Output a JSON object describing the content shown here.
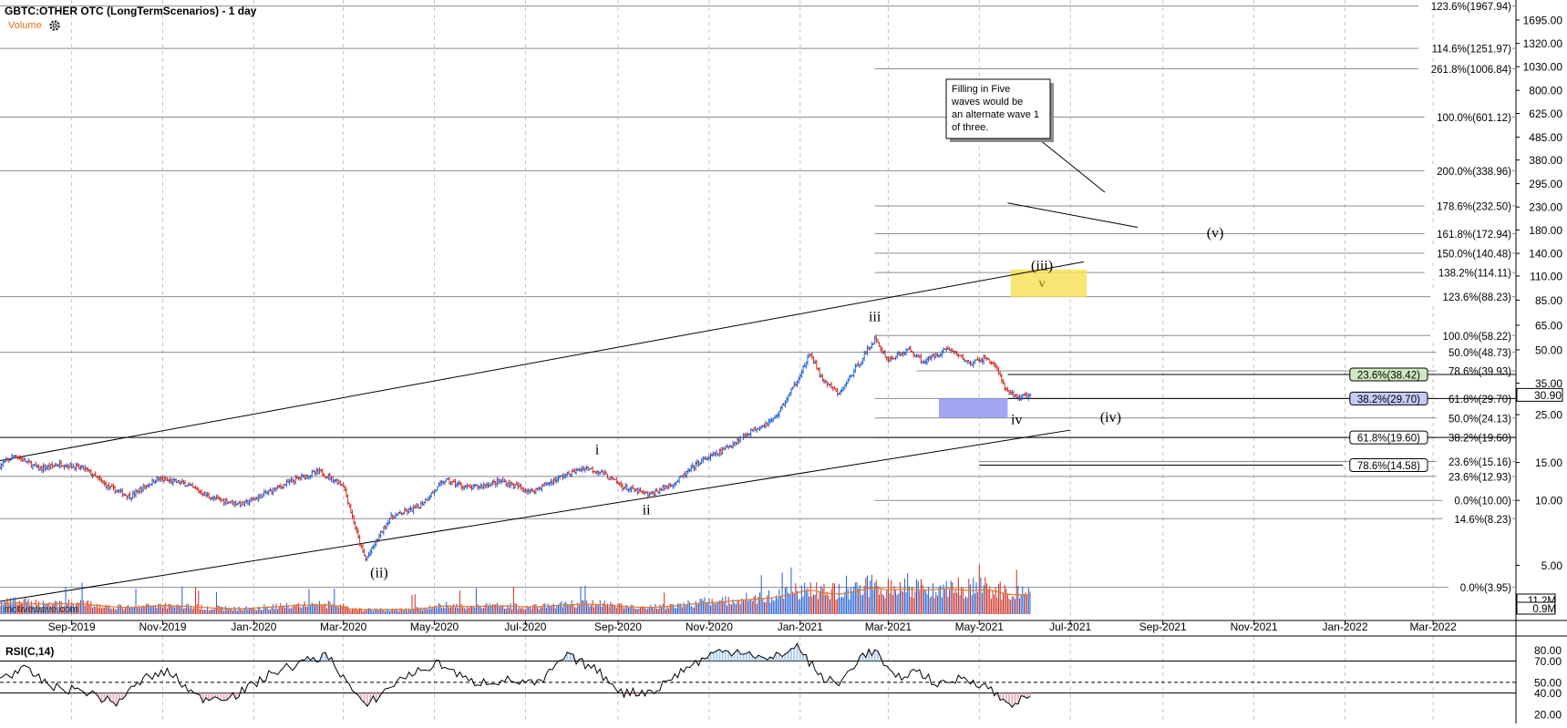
{
  "header": {
    "title": "GBTC:OTHER OTC (LongTermScenarios) - 1 day",
    "volume_label": "Volume",
    "settings_icon": "gear-icon"
  },
  "watermark": "motivewave.com",
  "chart_data": [
    {
      "type": "candlestick",
      "name": "price",
      "y_scale": "log",
      "ylim": [
        2.8,
        2100
      ],
      "x_range": [
        "2019-07-15",
        "2022-04-20"
      ],
      "x_ticks": [
        "Sep-2019",
        "Nov-2019",
        "Jan-2020",
        "Mar-2020",
        "May-2020",
        "Jul-2020",
        "Sep-2020",
        "Nov-2020",
        "Jan-2021",
        "Mar-2021",
        "May-2021",
        "Jul-2021",
        "Sep-2021",
        "Nov-2021",
        "Jan-2022",
        "Mar-2022"
      ],
      "y_ticks": [
        1695.0,
        1320.0,
        1030.0,
        800.0,
        625.0,
        485.0,
        380.0,
        295.0,
        230.0,
        180.0,
        140.0,
        110.0,
        85.0,
        65.0,
        50.0,
        35.0,
        25.0,
        15.0,
        10.0,
        5.0
      ],
      "last_price": "30.90",
      "price_points": [
        [
          "2019-07-15",
          14.5
        ],
        [
          "2019-07-25",
          16.2
        ],
        [
          "2019-08-10",
          14.0
        ],
        [
          "2019-08-25",
          14.8
        ],
        [
          "2019-09-10",
          14.0
        ],
        [
          "2019-09-25",
          11.6
        ],
        [
          "2019-10-10",
          10.4
        ],
        [
          "2019-10-28",
          12.6
        ],
        [
          "2019-11-15",
          12.0
        ],
        [
          "2019-12-05",
          10.2
        ],
        [
          "2019-12-25",
          9.6
        ],
        [
          "2020-01-15",
          11.3
        ],
        [
          "2020-02-01",
          12.8
        ],
        [
          "2020-02-14",
          13.6
        ],
        [
          "2020-03-01",
          11.8
        ],
        [
          "2020-03-12",
          6.3
        ],
        [
          "2020-03-16",
          5.3
        ],
        [
          "2020-04-01",
          8.3
        ],
        [
          "2020-04-20",
          9.3
        ],
        [
          "2020-05-08",
          12.4
        ],
        [
          "2020-05-25",
          11.4
        ],
        [
          "2020-06-15",
          12.3
        ],
        [
          "2020-07-05",
          11.0
        ],
        [
          "2020-07-25",
          12.9
        ],
        [
          "2020-08-10",
          14.2
        ],
        [
          "2020-08-20",
          13.6
        ],
        [
          "2020-09-05",
          11.5
        ],
        [
          "2020-09-22",
          10.6
        ],
        [
          "2020-10-10",
          12.2
        ],
        [
          "2020-10-25",
          15.0
        ],
        [
          "2020-11-10",
          17.0
        ],
        [
          "2020-11-28",
          20.8
        ],
        [
          "2020-12-15",
          24.0
        ],
        [
          "2020-12-28",
          34.0
        ],
        [
          "2021-01-08",
          48.0
        ],
        [
          "2021-01-15",
          37.0
        ],
        [
          "2021-01-27",
          31.0
        ],
        [
          "2021-02-10",
          44.0
        ],
        [
          "2021-02-20",
          56.0
        ],
        [
          "2021-03-01",
          45.0
        ],
        [
          "2021-03-15",
          50.0
        ],
        [
          "2021-03-25",
          44.0
        ],
        [
          "2021-04-10",
          51.0
        ],
        [
          "2021-04-25",
          43.0
        ],
        [
          "2021-05-05",
          46.0
        ],
        [
          "2021-05-12",
          42.0
        ],
        [
          "2021-05-19",
          32.0
        ],
        [
          "2021-05-28",
          30.0
        ],
        [
          "2021-06-04",
          30.9
        ]
      ],
      "lines": [
        {
          "from": [
            "2019-07-15",
            15.3
          ],
          "to": [
            "2021-07-10",
            128.0
          ]
        },
        {
          "from": [
            "2019-07-15",
            3.4
          ],
          "to": [
            "2021-07-01",
            21.2
          ]
        },
        {
          "from": [
            "2021-05-20",
            240.0
          ],
          "to": [
            "2021-08-15",
            185.0
          ]
        }
      ],
      "wave_labels": [
        {
          "text": "i",
          "x": "2020-08-18",
          "y": 16.4
        },
        {
          "text": "ii",
          "x": "2020-09-20",
          "y": 8.6
        },
        {
          "text": "(ii)",
          "x": "2020-03-25",
          "y": 4.4
        },
        {
          "text": "iii",
          "x": "2021-02-20",
          "y": 68.0
        },
        {
          "text": "(iii)",
          "x": "2021-06-12",
          "y": 117.0
        },
        {
          "text": "v",
          "x": "2021-06-12",
          "y": 98.0
        },
        {
          "text": "iv",
          "x": "2021-05-26",
          "y": 22.6
        },
        {
          "text": "(iv)",
          "x": "2021-07-28",
          "y": 23.2
        },
        {
          "text": "(v)",
          "x": "2021-10-06",
          "y": 166.0
        }
      ],
      "highlight_boxes": [
        {
          "x0": "2021-05-22",
          "x1": "2021-07-12",
          "y0": 88.0,
          "y1": 118.0,
          "color": "#f8e25a"
        },
        {
          "x0": "2021-04-04",
          "x1": "2021-05-20",
          "y0": 24.2,
          "y1": 29.7,
          "color": "#8f97f2"
        }
      ],
      "annotation": "Filling in Five waves would be an alternate wave 1 of three.",
      "annotation_anchor": [
        "2021-07-12",
        520.0
      ],
      "fib_levels": [
        {
          "label": "123.6%(1967.94)",
          "value": 1967.94,
          "x_start": "2019-07-15"
        },
        {
          "label": "114.6%(1251.97)",
          "value": 1251.97,
          "x_start": "2019-07-15"
        },
        {
          "label": "261.8%(1006.84)",
          "value": 1006.84,
          "x_start": "2021-02-20"
        },
        {
          "label": "100.0%(601.12)",
          "value": 601.12,
          "x_start": "2019-07-15"
        },
        {
          "label": "200.0%(338.96)",
          "value": 338.96,
          "x_start": "2019-07-15"
        },
        {
          "label": "178.6%(232.50)",
          "value": 232.5,
          "x_start": "2021-02-20"
        },
        {
          "label": "161.8%(172.94)",
          "value": 172.94,
          "x_start": "2021-02-20"
        },
        {
          "label": "150.0%(140.48)",
          "value": 140.48,
          "x_start": "2021-02-20"
        },
        {
          "label": "138.2%(114.11)",
          "value": 114.11,
          "x_start": "2021-02-20"
        },
        {
          "label": "123.6%(88.23)",
          "value": 88.23,
          "x_start": "2019-07-15"
        },
        {
          "label": "100.0%(58.22)",
          "value": 58.22,
          "x_start": "2021-02-20"
        },
        {
          "label": "50.0%(48.73)",
          "value": 48.73,
          "x_start": "2019-07-15"
        },
        {
          "label": "78.6%(39.93)",
          "value": 39.93,
          "x_start": "2021-03-20"
        },
        {
          "label": "61.8%(29.70)",
          "value": 29.7,
          "x_start": "2021-02-20"
        },
        {
          "label": "50.0%(24.13)",
          "value": 24.13,
          "x_start": "2021-02-20"
        },
        {
          "label": "38.2%(19.60)",
          "value": 19.6,
          "x_start": "2021-02-20"
        },
        {
          "label": "23.6%(15.16)",
          "value": 15.16,
          "x_start": "2021-05-01"
        },
        {
          "label": "23.6%(12.93)",
          "value": 12.93,
          "x_start": "2019-07-15"
        },
        {
          "label": "0.0%(10.00)",
          "value": 10.0,
          "x_start": "2021-02-20"
        },
        {
          "label": "14.6%(8.23)",
          "value": 8.23,
          "x_start": "2019-07-15"
        },
        {
          "label": "0.0%(3.95)",
          "value": 3.95,
          "x_start": "2019-07-15"
        }
      ],
      "boxed_levels": [
        {
          "label": "23.6%(38.42)",
          "value": 38.42,
          "fill": "#cdeac0",
          "x_start": "2021-05-20"
        },
        {
          "label": "38.2%(29.70)",
          "value": 29.7,
          "fill": "#c5ccf6",
          "x_start": "2021-05-20"
        },
        {
          "label": "61.8%(19.60)",
          "value": 19.6,
          "fill": "#ffffff",
          "x_start": "2019-07-15"
        },
        {
          "label": "78.6%(14.58)",
          "value": 14.58,
          "fill": "#ffffff",
          "x_start": null
        }
      ]
    },
    {
      "type": "bar",
      "name": "volume",
      "labels": [
        "11.2M",
        "0.9M"
      ]
    },
    {
      "type": "line",
      "name": "rsi",
      "title": "RSI(C,14)",
      "ylim": [
        15,
        90
      ],
      "levels": [
        70,
        50,
        40
      ],
      "y_ticks": [
        80.0,
        70.0,
        50.0,
        40.0,
        20.0
      ],
      "points": [
        [
          "2019-07-15",
          55
        ],
        [
          "2019-08-01",
          62
        ],
        [
          "2019-08-20",
          45
        ],
        [
          "2019-09-10",
          42
        ],
        [
          "2019-09-30",
          30
        ],
        [
          "2019-10-20",
          54
        ],
        [
          "2019-11-05",
          60
        ],
        [
          "2019-11-25",
          35
        ],
        [
          "2019-12-20",
          38
        ],
        [
          "2020-01-15",
          60
        ],
        [
          "2020-02-10",
          72
        ],
        [
          "2020-02-20",
          75
        ],
        [
          "2020-03-15",
          27
        ],
        [
          "2020-04-10",
          55
        ],
        [
          "2020-05-05",
          68
        ],
        [
          "2020-05-25",
          50
        ],
        [
          "2020-06-20",
          52
        ],
        [
          "2020-07-10",
          48
        ],
        [
          "2020-07-28",
          75
        ],
        [
          "2020-08-15",
          64
        ],
        [
          "2020-09-05",
          40
        ],
        [
          "2020-09-25",
          42
        ],
        [
          "2020-10-15",
          62
        ],
        [
          "2020-11-05",
          78
        ],
        [
          "2020-11-25",
          80
        ],
        [
          "2020-12-10",
          70
        ],
        [
          "2020-12-30",
          84
        ],
        [
          "2021-01-15",
          55
        ],
        [
          "2021-01-27",
          48
        ],
        [
          "2021-02-10",
          74
        ],
        [
          "2021-02-20",
          80
        ],
        [
          "2021-03-05",
          53
        ],
        [
          "2021-03-20",
          61
        ],
        [
          "2021-04-05",
          47
        ],
        [
          "2021-04-20",
          55
        ],
        [
          "2021-05-05",
          47
        ],
        [
          "2021-05-20",
          30
        ],
        [
          "2021-05-28",
          33
        ],
        [
          "2021-06-04",
          36
        ]
      ]
    }
  ]
}
